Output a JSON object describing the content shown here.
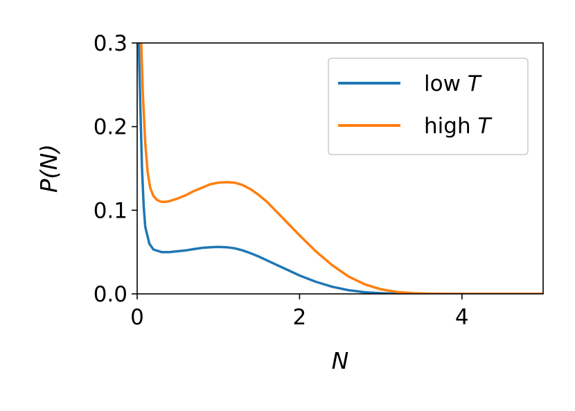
{
  "chart_data": {
    "type": "line",
    "xlabel": "N",
    "ylabel": "P(N)",
    "xlim": [
      0,
      5
    ],
    "ylim": [
      0,
      0.3
    ],
    "xticks": [
      0,
      2,
      4
    ],
    "xtick_labels": [
      "0",
      "2",
      "4"
    ],
    "yticks": [
      0.0,
      0.1,
      0.2,
      0.3
    ],
    "ytick_labels": [
      "0.0",
      "0.1",
      "0.2",
      "0.3"
    ],
    "grid": false,
    "legend": {
      "placement": "top-right",
      "entries": [
        {
          "prefix": "low ",
          "italic": "T"
        },
        {
          "prefix": "high ",
          "italic": "T"
        }
      ]
    },
    "series": [
      {
        "name": "low T",
        "color": "#1f77b4",
        "x": [
          0.02,
          0.04,
          0.06,
          0.08,
          0.1,
          0.15,
          0.2,
          0.3,
          0.4,
          0.5,
          0.6,
          0.7,
          0.8,
          0.9,
          1.0,
          1.1,
          1.2,
          1.3,
          1.4,
          1.5,
          1.6,
          1.7,
          1.8,
          1.9,
          2.0,
          2.2,
          2.4,
          2.6,
          2.8,
          3.0,
          3.2,
          3.5,
          4.0,
          4.5,
          5.0
        ],
        "y": [
          0.3,
          0.22,
          0.15,
          0.105,
          0.08,
          0.06,
          0.053,
          0.05,
          0.05,
          0.051,
          0.052,
          0.0535,
          0.055,
          0.0558,
          0.0562,
          0.0558,
          0.0545,
          0.052,
          0.0485,
          0.0445,
          0.04,
          0.0355,
          0.031,
          0.0265,
          0.022,
          0.0145,
          0.0085,
          0.0045,
          0.002,
          0.0008,
          0.0003,
          0.0001,
          0.0,
          0.0,
          0.0
        ]
      },
      {
        "name": "high T",
        "color": "#ff7f0e",
        "x": [
          0.05,
          0.07,
          0.1,
          0.13,
          0.16,
          0.2,
          0.25,
          0.3,
          0.35,
          0.4,
          0.5,
          0.6,
          0.7,
          0.8,
          0.9,
          1.0,
          1.1,
          1.2,
          1.3,
          1.4,
          1.5,
          1.6,
          1.7,
          1.8,
          1.9,
          2.0,
          2.2,
          2.4,
          2.6,
          2.8,
          3.0,
          3.2,
          3.4,
          3.6,
          3.8,
          4.0,
          4.5,
          5.0
        ],
        "y": [
          0.3,
          0.24,
          0.18,
          0.145,
          0.127,
          0.117,
          0.112,
          0.11,
          0.11,
          0.111,
          0.114,
          0.118,
          0.123,
          0.127,
          0.131,
          0.133,
          0.1335,
          0.133,
          0.13,
          0.125,
          0.118,
          0.11,
          0.1,
          0.09,
          0.08,
          0.07,
          0.051,
          0.0345,
          0.021,
          0.0115,
          0.0055,
          0.0023,
          0.0008,
          0.0003,
          0.0001,
          0.0,
          0.0,
          0.0
        ]
      }
    ]
  }
}
